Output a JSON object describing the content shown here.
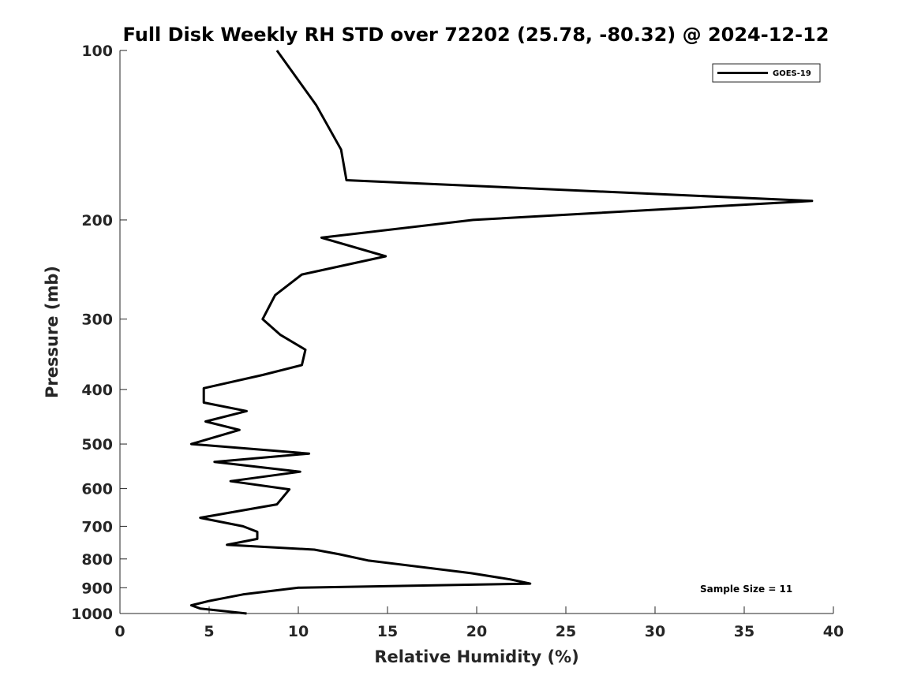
{
  "chart_data": {
    "type": "line",
    "title": "Full Disk Weekly RH STD over 72202 (25.78, -80.32) @ 2024-12-12",
    "xlabel": "Relative Humidity (%)",
    "ylabel": "Pressure (mb)",
    "xlim": [
      0,
      40
    ],
    "ylim": [
      100,
      1000
    ],
    "y_scale": "log",
    "y_reversed": true,
    "grid": false,
    "legend_position": "top-right",
    "xticks": [
      0,
      5,
      10,
      15,
      20,
      25,
      30,
      35,
      40
    ],
    "yticks": [
      100,
      200,
      300,
      400,
      500,
      600,
      700,
      800,
      900,
      1000
    ],
    "annotation": "Sample Size = 11",
    "series": [
      {
        "name": "GOES-19",
        "color": "#000000",
        "points": [
          [
            8.8,
            100
          ],
          [
            11.0,
            125
          ],
          [
            12.4,
            150
          ],
          [
            12.7,
            170
          ],
          [
            38.8,
            185
          ],
          [
            19.8,
            200
          ],
          [
            11.3,
            215
          ],
          [
            14.9,
            232
          ],
          [
            10.2,
            250
          ],
          [
            8.7,
            272
          ],
          [
            8.0,
            300
          ],
          [
            9.0,
            320
          ],
          [
            10.4,
            340
          ],
          [
            10.2,
            362
          ],
          [
            8.0,
            377
          ],
          [
            4.7,
            398
          ],
          [
            4.7,
            422
          ],
          [
            7.1,
            437
          ],
          [
            4.8,
            456
          ],
          [
            6.7,
            472
          ],
          [
            4.0,
            500
          ],
          [
            10.6,
            520
          ],
          [
            5.3,
            538
          ],
          [
            10.1,
            560
          ],
          [
            6.2,
            582
          ],
          [
            9.5,
            602
          ],
          [
            8.8,
            640
          ],
          [
            4.5,
            676
          ],
          [
            6.9,
            700
          ],
          [
            7.7,
            716
          ],
          [
            7.7,
            737
          ],
          [
            6.0,
            755
          ],
          [
            10.9,
            770
          ],
          [
            12.3,
            785
          ],
          [
            13.9,
            805
          ],
          [
            19.7,
            848
          ],
          [
            21.9,
            870
          ],
          [
            23.0,
            885
          ],
          [
            10.0,
            900
          ],
          [
            6.9,
            925
          ],
          [
            5.0,
            950
          ],
          [
            4.0,
            967
          ],
          [
            4.5,
            980
          ],
          [
            7.1,
            1000
          ]
        ]
      }
    ]
  }
}
